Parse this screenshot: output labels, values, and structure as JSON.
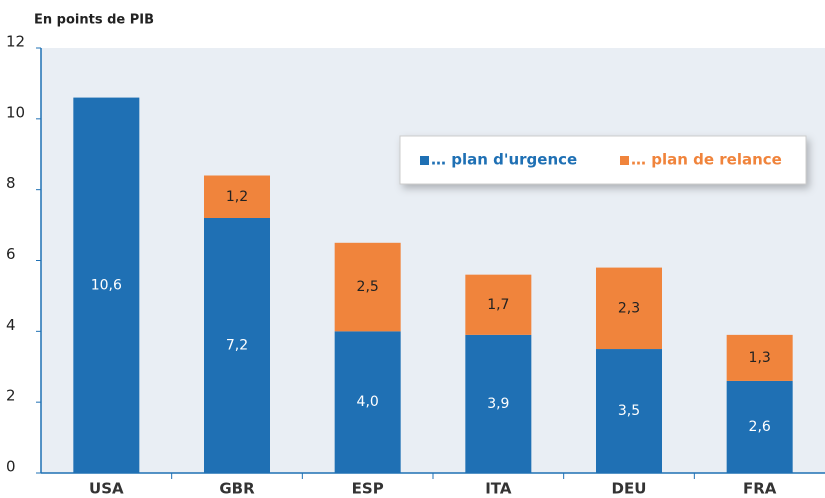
{
  "chart_data": {
    "type": "stacked_bar",
    "y_axis_label": "En points de PIB",
    "categories": [
      "USA",
      "GBR",
      "ESP",
      "ITA",
      "DEU",
      "FRA"
    ],
    "series": [
      {
        "name": "… plan d'urgence",
        "color": "#1f70b4",
        "values": [
          10.6,
          7.2,
          4.0,
          3.9,
          3.5,
          2.6
        ],
        "value_labels": [
          "10,6",
          "7,2",
          "4,0",
          "3,9",
          "3,5",
          "2,6"
        ]
      },
      {
        "name": "… plan de relance",
        "color": "#f0843c",
        "values": [
          null,
          1.2,
          2.5,
          1.7,
          2.3,
          1.3
        ],
        "value_labels": [
          null,
          "1,2",
          "2,5",
          "1,7",
          "2,3",
          "1,3"
        ]
      }
    ],
    "ylim": [
      0,
      12
    ],
    "yticks": [
      0,
      2,
      4,
      6,
      8,
      10,
      12
    ],
    "grid": false,
    "legend": "top-right"
  }
}
